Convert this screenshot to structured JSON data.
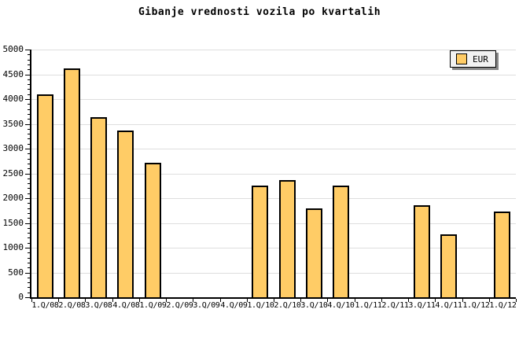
{
  "title": "Gibanje vrednosti vozila po kvartalih",
  "legend": {
    "label": "EUR"
  },
  "colors": {
    "background": "#FFFFFF",
    "bar_fill": "#FFCC66",
    "bar_border": "#000000",
    "grid": "#DEDEDE",
    "axis": "#000000",
    "legend_bg": "#F2F2F2",
    "legend_shadow": "#888888"
  },
  "chart_data": {
    "type": "bar",
    "title": "Gibanje vrednosti vozila po kvartalih",
    "categories": [
      "1.Q/08",
      "2.Q/08",
      "3.Q/08",
      "4.Q/08",
      "1.Q/09",
      "2.Q/09",
      "3.Q/09",
      "4.Q/09",
      "1.Q/10",
      "2.Q/10",
      "3.Q/10",
      "4.Q/10",
      "1.Q/11",
      "2.Q/11",
      "3.Q/11",
      "4.Q/11",
      "1.Q/12",
      "1.Q/12"
    ],
    "values": [
      4100,
      4620,
      3640,
      3360,
      2710,
      0,
      0,
      0,
      2250,
      2370,
      1790,
      2250,
      0,
      0,
      1850,
      1270,
      0,
      1725
    ],
    "series_name": "EUR",
    "xlabel": "",
    "ylabel": "",
    "ylim": [
      0,
      5000
    ],
    "ytick_step": 500,
    "y_minor_step": 100,
    "grid": "horizontal-major",
    "legend_position": "top-right"
  }
}
